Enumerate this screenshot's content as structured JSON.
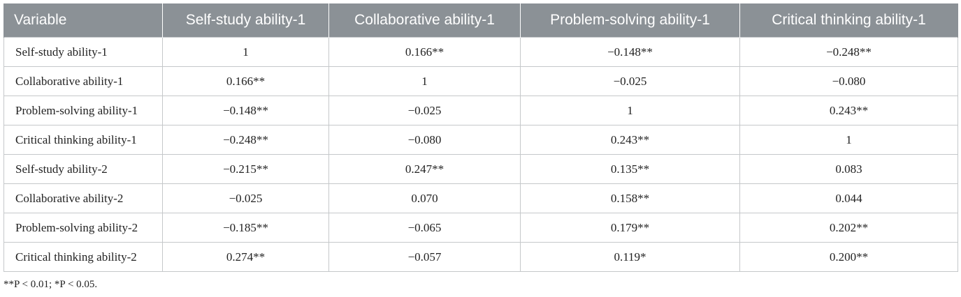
{
  "table": {
    "headers": [
      "Variable",
      "Self-study ability-1",
      "Collaborative ability-1",
      "Problem-solving ability-1",
      "Critical thinking ability-1"
    ],
    "rows": [
      [
        "Self-study ability-1",
        "1",
        "0.166**",
        "−0.148**",
        "−0.248**"
      ],
      [
        "Collaborative ability-1",
        "0.166**",
        "1",
        "−0.025",
        "−0.080"
      ],
      [
        "Problem-solving ability-1",
        "−0.148**",
        "−0.025",
        "1",
        "0.243**"
      ],
      [
        "Critical thinking ability-1",
        "−0.248**",
        "−0.080",
        "0.243**",
        "1"
      ],
      [
        "Self-study ability-2",
        "−0.215**",
        "0.247**",
        "0.135**",
        "0.083"
      ],
      [
        "Collaborative ability-2",
        "−0.025",
        "0.070",
        "0.158**",
        "0.044"
      ],
      [
        "Problem-solving ability-2",
        "−0.185**",
        "−0.065",
        "0.179**",
        "0.202**"
      ],
      [
        "Critical thinking ability-2",
        "0.274**",
        "−0.057",
        "0.119*",
        "0.200**"
      ]
    ]
  },
  "footnote": "**P < 0.01; *P < 0.05.",
  "colors": {
    "header_bg": "#8b9196",
    "header_text": "#ffffff",
    "border": "#c5c8ca"
  }
}
